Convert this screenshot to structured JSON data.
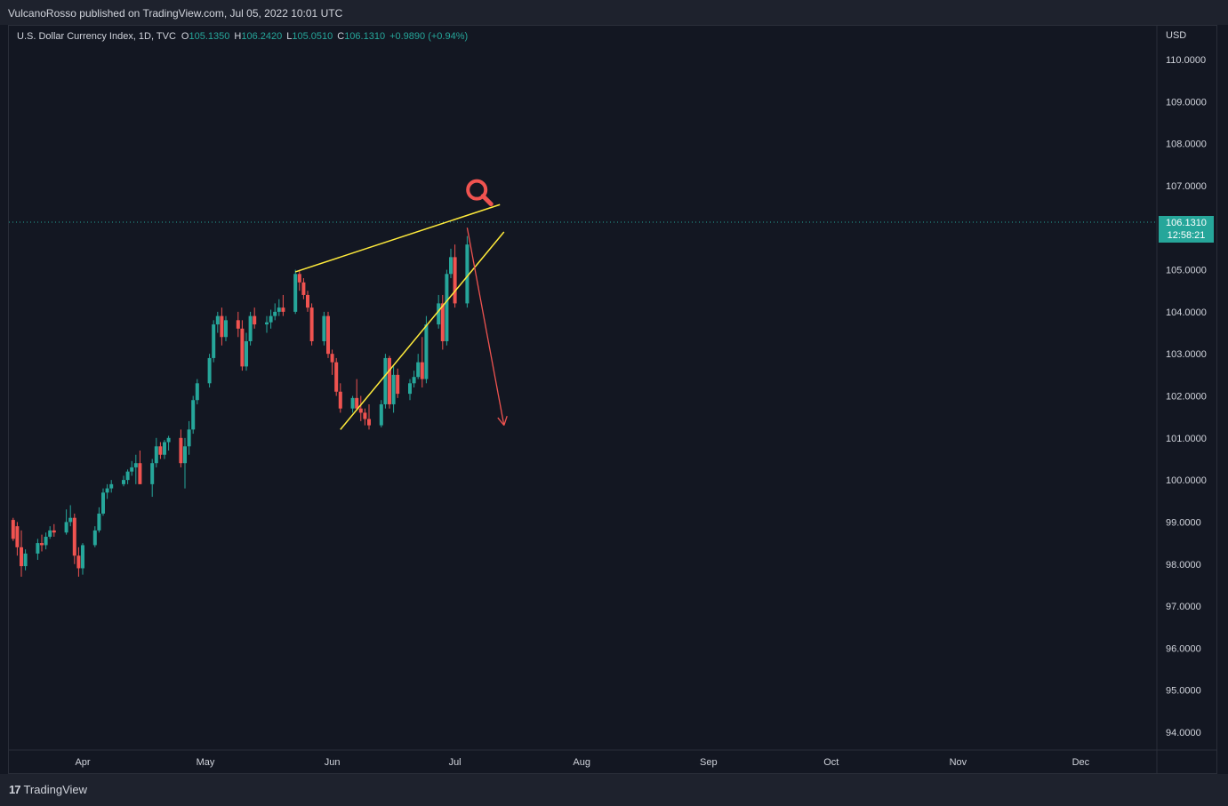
{
  "header": {
    "published": "VulcanoRosso published on TradingView.com, Jul 05, 2022 10:01 UTC"
  },
  "legend": {
    "symbol": "U.S. Dollar Currency Index, 1D, TVC",
    "open_label": "O",
    "open": "105.1350",
    "high_label": "H",
    "high": "106.2420",
    "low_label": "L",
    "low": "105.0510",
    "close_label": "C",
    "close": "106.1310",
    "change": "+0.9890 (+0.94%)"
  },
  "price_axis": {
    "currency": "USD",
    "last_price": "106.1310",
    "countdown": "12:58:21"
  },
  "footer": {
    "brand": "TradingView",
    "brand_mark": "17"
  },
  "colors": {
    "background": "#131722",
    "up": "#26a69a",
    "down": "#ef5350",
    "trendline": "#ffeb3b",
    "arrow": "#ef5350",
    "text": "#d1d4dc"
  },
  "chart_data": {
    "type": "candlestick",
    "title": "U.S. Dollar Currency Index, 1D, TVC",
    "x_ticks": [
      "Apr",
      "May",
      "Jun",
      "Jul",
      "Aug",
      "Sep",
      "Oct",
      "Nov",
      "Dec"
    ],
    "y_ticks": [
      "110.0000",
      "109.0000",
      "108.0000",
      "107.0000",
      "105.0000",
      "104.0000",
      "103.0000",
      "102.0000",
      "101.0000",
      "100.0000",
      "99.0000",
      "98.0000",
      "97.0000",
      "96.0000",
      "95.0000",
      "94.0000"
    ],
    "ylim": [
      93.3,
      111.2
    ],
    "grid": false,
    "last_price": 106.131,
    "candles": [
      {
        "date": "2022-03-15",
        "o": 99.05,
        "h": 99.1,
        "l": 98.55,
        "c": 98.6
      },
      {
        "date": "2022-03-16",
        "o": 98.9,
        "h": 99.0,
        "l": 98.2,
        "c": 98.4
      },
      {
        "date": "2022-03-17",
        "o": 98.4,
        "h": 98.8,
        "l": 97.7,
        "c": 97.95
      },
      {
        "date": "2022-03-18",
        "o": 97.95,
        "h": 98.35,
        "l": 97.85,
        "c": 98.25
      },
      {
        "date": "2022-03-21",
        "o": 98.25,
        "h": 98.6,
        "l": 98.1,
        "c": 98.5
      },
      {
        "date": "2022-03-22",
        "o": 98.5,
        "h": 98.7,
        "l": 98.3,
        "c": 98.45
      },
      {
        "date": "2022-03-23",
        "o": 98.45,
        "h": 98.75,
        "l": 98.35,
        "c": 98.65
      },
      {
        "date": "2022-03-24",
        "o": 98.65,
        "h": 98.9,
        "l": 98.6,
        "c": 98.8
      },
      {
        "date": "2022-03-25",
        "o": 98.8,
        "h": 98.95,
        "l": 98.65,
        "c": 98.75
      },
      {
        "date": "2022-03-28",
        "o": 98.75,
        "h": 99.3,
        "l": 98.7,
        "c": 99.0
      },
      {
        "date": "2022-03-29",
        "o": 99.0,
        "h": 99.4,
        "l": 98.9,
        "c": 99.1
      },
      {
        "date": "2022-03-30",
        "o": 99.1,
        "h": 99.2,
        "l": 98.0,
        "c": 98.2
      },
      {
        "date": "2022-03-31",
        "o": 98.2,
        "h": 98.4,
        "l": 97.7,
        "c": 97.9
      },
      {
        "date": "2022-04-01",
        "o": 97.9,
        "h": 98.5,
        "l": 97.75,
        "c": 98.45
      },
      {
        "date": "2022-04-04",
        "o": 98.45,
        "h": 98.9,
        "l": 98.4,
        "c": 98.8
      },
      {
        "date": "2022-04-05",
        "o": 98.8,
        "h": 99.35,
        "l": 98.75,
        "c": 99.2
      },
      {
        "date": "2022-04-06",
        "o": 99.2,
        "h": 99.8,
        "l": 99.15,
        "c": 99.7
      },
      {
        "date": "2022-04-07",
        "o": 99.7,
        "h": 99.9,
        "l": 99.55,
        "c": 99.8
      },
      {
        "date": "2022-04-08",
        "o": 99.8,
        "h": 100.0,
        "l": 99.7,
        "c": 99.9
      },
      {
        "date": "2022-04-11",
        "o": 99.9,
        "h": 100.1,
        "l": 99.85,
        "c": 100.0
      },
      {
        "date": "2022-04-12",
        "o": 100.0,
        "h": 100.25,
        "l": 99.9,
        "c": 100.2
      },
      {
        "date": "2022-04-13",
        "o": 100.2,
        "h": 100.45,
        "l": 100.1,
        "c": 100.3
      },
      {
        "date": "2022-04-14",
        "o": 100.3,
        "h": 100.6,
        "l": 99.9,
        "c": 100.4
      },
      {
        "date": "2022-04-15",
        "o": 100.4,
        "h": 100.7,
        "l": 99.9,
        "c": 99.9
      },
      {
        "date": "2022-04-18",
        "o": 99.9,
        "h": 100.5,
        "l": 99.6,
        "c": 100.4
      },
      {
        "date": "2022-04-19",
        "o": 100.4,
        "h": 101.0,
        "l": 100.3,
        "c": 100.8
      },
      {
        "date": "2022-04-20",
        "o": 100.8,
        "h": 100.9,
        "l": 100.5,
        "c": 100.6
      },
      {
        "date": "2022-04-21",
        "o": 100.6,
        "h": 100.95,
        "l": 100.5,
        "c": 100.9
      },
      {
        "date": "2022-04-22",
        "o": 100.9,
        "h": 101.05,
        "l": 100.7,
        "c": 101.0
      },
      {
        "date": "2022-04-25",
        "o": 101.0,
        "h": 101.2,
        "l": 100.3,
        "c": 100.4
      },
      {
        "date": "2022-04-26",
        "o": 100.4,
        "h": 101.0,
        "l": 99.8,
        "c": 100.8
      },
      {
        "date": "2022-04-27",
        "o": 100.8,
        "h": 101.4,
        "l": 100.6,
        "c": 101.2
      },
      {
        "date": "2022-04-28",
        "o": 101.2,
        "h": 102.0,
        "l": 101.1,
        "c": 101.9
      },
      {
        "date": "2022-04-29",
        "o": 101.9,
        "h": 102.4,
        "l": 101.8,
        "c": 102.3
      },
      {
        "date": "2022-05-02",
        "o": 102.3,
        "h": 103.0,
        "l": 102.2,
        "c": 102.9
      },
      {
        "date": "2022-05-03",
        "o": 102.9,
        "h": 103.8,
        "l": 102.8,
        "c": 103.7
      },
      {
        "date": "2022-05-04",
        "o": 103.7,
        "h": 104.0,
        "l": 103.5,
        "c": 103.9
      },
      {
        "date": "2022-05-05",
        "o": 103.9,
        "h": 104.1,
        "l": 103.2,
        "c": 103.4
      },
      {
        "date": "2022-05-06",
        "o": 103.4,
        "h": 103.9,
        "l": 103.3,
        "c": 103.8
      },
      {
        "date": "2022-05-09",
        "o": 103.8,
        "h": 104.0,
        "l": 103.4,
        "c": 103.6
      },
      {
        "date": "2022-05-10",
        "o": 103.6,
        "h": 103.8,
        "l": 102.6,
        "c": 102.7
      },
      {
        "date": "2022-05-11",
        "o": 102.7,
        "h": 103.5,
        "l": 102.6,
        "c": 103.3
      },
      {
        "date": "2022-05-12",
        "o": 103.3,
        "h": 104.0,
        "l": 103.2,
        "c": 103.9
      },
      {
        "date": "2022-05-13",
        "o": 103.9,
        "h": 104.1,
        "l": 103.6,
        "c": 103.7
      },
      {
        "date": "2022-05-16",
        "o": 103.7,
        "h": 103.9,
        "l": 103.5,
        "c": 103.75
      },
      {
        "date": "2022-05-17",
        "o": 103.75,
        "h": 104.05,
        "l": 103.6,
        "c": 103.9
      },
      {
        "date": "2022-05-18",
        "o": 103.9,
        "h": 104.2,
        "l": 103.8,
        "c": 104.0
      },
      {
        "date": "2022-05-19",
        "o": 104.0,
        "h": 104.3,
        "l": 103.9,
        "c": 104.1
      },
      {
        "date": "2022-05-20",
        "o": 104.1,
        "h": 104.4,
        "l": 103.9,
        "c": 104.0
      },
      {
        "date": "2022-05-23",
        "o": 104.0,
        "h": 105.0,
        "l": 103.95,
        "c": 104.9
      },
      {
        "date": "2022-05-24",
        "o": 104.9,
        "h": 105.0,
        "l": 104.5,
        "c": 104.7
      },
      {
        "date": "2022-05-25",
        "o": 104.7,
        "h": 104.8,
        "l": 104.3,
        "c": 104.4
      },
      {
        "date": "2022-05-26",
        "o": 104.4,
        "h": 104.5,
        "l": 104.0,
        "c": 104.1
      },
      {
        "date": "2022-05-27",
        "o": 104.1,
        "h": 104.2,
        "l": 103.2,
        "c": 103.3
      },
      {
        "date": "2022-05-30",
        "o": 103.3,
        "h": 104.0,
        "l": 103.2,
        "c": 103.9
      },
      {
        "date": "2022-05-31",
        "o": 103.9,
        "h": 104.0,
        "l": 102.9,
        "c": 103.0
      },
      {
        "date": "2022-06-01",
        "o": 103.0,
        "h": 103.1,
        "l": 102.5,
        "c": 102.8
      },
      {
        "date": "2022-06-02",
        "o": 102.8,
        "h": 102.9,
        "l": 102.0,
        "c": 102.1
      },
      {
        "date": "2022-06-03",
        "o": 102.1,
        "h": 102.3,
        "l": 101.6,
        "c": 101.7
      },
      {
        "date": "2022-06-06",
        "o": 101.7,
        "h": 102.0,
        "l": 101.6,
        "c": 101.95
      },
      {
        "date": "2022-06-07",
        "o": 101.95,
        "h": 102.4,
        "l": 101.65,
        "c": 101.7
      },
      {
        "date": "2022-06-08",
        "o": 101.7,
        "h": 102.0,
        "l": 101.4,
        "c": 101.6
      },
      {
        "date": "2022-06-09",
        "o": 101.6,
        "h": 101.7,
        "l": 101.3,
        "c": 101.45
      },
      {
        "date": "2022-06-10",
        "o": 101.45,
        "h": 101.8,
        "l": 101.2,
        "c": 101.3
      },
      {
        "date": "2022-06-13",
        "o": 101.3,
        "h": 101.9,
        "l": 101.25,
        "c": 101.8
      },
      {
        "date": "2022-06-14",
        "o": 101.8,
        "h": 103.0,
        "l": 101.7,
        "c": 102.9
      },
      {
        "date": "2022-06-15",
        "o": 102.9,
        "h": 102.95,
        "l": 101.7,
        "c": 101.8
      },
      {
        "date": "2022-06-16",
        "o": 101.8,
        "h": 102.7,
        "l": 101.6,
        "c": 102.5
      },
      {
        "date": "2022-06-17",
        "o": 102.5,
        "h": 102.65,
        "l": 101.95,
        "c": 102.05
      },
      {
        "date": "2022-06-20",
        "o": 102.05,
        "h": 102.4,
        "l": 101.9,
        "c": 102.3
      },
      {
        "date": "2022-06-21",
        "o": 102.3,
        "h": 102.6,
        "l": 102.2,
        "c": 102.45
      },
      {
        "date": "2022-06-22",
        "o": 102.45,
        "h": 103.0,
        "l": 102.4,
        "c": 102.8
      },
      {
        "date": "2022-06-23",
        "o": 102.8,
        "h": 103.4,
        "l": 102.2,
        "c": 102.4
      },
      {
        "date": "2022-06-24",
        "o": 102.4,
        "h": 103.9,
        "l": 102.3,
        "c": 103.7
      },
      {
        "date": "2022-06-27",
        "o": 103.7,
        "h": 104.4,
        "l": 103.6,
        "c": 104.2
      },
      {
        "date": "2022-06-28",
        "o": 104.2,
        "h": 104.4,
        "l": 103.1,
        "c": 103.3
      },
      {
        "date": "2022-06-29",
        "o": 103.3,
        "h": 105.0,
        "l": 103.2,
        "c": 104.9
      },
      {
        "date": "2022-06-30",
        "o": 104.9,
        "h": 105.5,
        "l": 104.8,
        "c": 105.3
      },
      {
        "date": "2022-07-01",
        "o": 105.3,
        "h": 105.6,
        "l": 104.1,
        "c": 104.2
      },
      {
        "date": "2022-07-04",
        "o": 104.2,
        "h": 105.8,
        "l": 104.1,
        "c": 105.6
      }
    ],
    "annotations": [
      {
        "type": "trendline",
        "color": "yellow",
        "from": {
          "date": "2022-05-23",
          "price": 104.95
        },
        "to": {
          "date": "2022-07-12",
          "price": 106.55
        }
      },
      {
        "type": "trendline",
        "color": "yellow",
        "from": {
          "date": "2022-06-03",
          "price": 101.2
        },
        "to": {
          "date": "2022-07-13",
          "price": 105.9
        }
      },
      {
        "type": "arrow",
        "color": "red",
        "from": {
          "date": "2022-07-04",
          "price": 106.0
        },
        "to": {
          "date": "2022-07-13",
          "price": 101.3
        }
      },
      {
        "type": "icon",
        "name": "magnifier-icon",
        "color": "red",
        "at": {
          "date": "2022-07-07",
          "price": 106.9
        }
      }
    ]
  }
}
